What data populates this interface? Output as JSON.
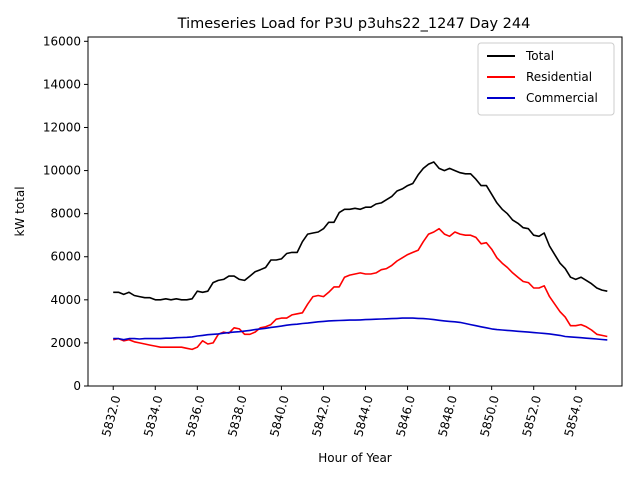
{
  "chart_data": {
    "type": "line",
    "title": "Timeseries Load for P3U p3uhs22_1247  Day 244",
    "xlabel": "Hour of Year",
    "ylabel": "kW total",
    "xlim": [
      5830.8,
      5856.2
    ],
    "ylim": [
      0,
      16200
    ],
    "xticks": [
      5832,
      5834,
      5836,
      5838,
      5840,
      5842,
      5844,
      5846,
      5848,
      5850,
      5852,
      5854
    ],
    "xtick_labels": [
      "5832.0",
      "5834.0",
      "5836.0",
      "5838.0",
      "5840.0",
      "5842.0",
      "5844.0",
      "5846.0",
      "5848.0",
      "5850.0",
      "5852.0",
      "5854.0"
    ],
    "yticks": [
      0,
      2000,
      4000,
      6000,
      8000,
      10000,
      12000,
      14000,
      16000
    ],
    "ytick_labels": [
      "0",
      "2000",
      "4000",
      "6000",
      "8000",
      "10000",
      "12000",
      "14000",
      "16000"
    ],
    "legend_position": "top-right",
    "x_start": 5832,
    "x_step": 0.25,
    "series": [
      {
        "name": "Total",
        "color": "#000000",
        "values": [
          4350,
          4350,
          4250,
          4350,
          4200,
          4150,
          4100,
          4100,
          4000,
          4000,
          4050,
          4000,
          4050,
          4000,
          4000,
          4050,
          4400,
          4350,
          4400,
          4800,
          4900,
          4950,
          5100,
          5100,
          4950,
          4900,
          5100,
          5300,
          5400,
          5500,
          5850,
          5850,
          5900,
          6150,
          6200,
          6200,
          6700,
          7050,
          7100,
          7150,
          7300,
          7600,
          7600,
          8050,
          8200,
          8200,
          8250,
          8200,
          8300,
          8300,
          8450,
          8500,
          8650,
          8800,
          9050,
          9150,
          9300,
          9400,
          9800,
          10100,
          10300,
          10400,
          10100,
          10000,
          10100,
          10000,
          9900,
          9850,
          9850,
          9600,
          9300,
          9300,
          8900,
          8500,
          8200,
          8000,
          7700,
          7550,
          7350,
          7300,
          7000,
          6950,
          7100,
          6500,
          6100,
          5700,
          5450,
          5050,
          4950,
          5050,
          4900,
          4750,
          4550,
          4450,
          4400
        ]
      },
      {
        "name": "Residential",
        "color": "#ff0000",
        "values": [
          2150,
          2200,
          2100,
          2150,
          2050,
          2000,
          1950,
          1900,
          1850,
          1800,
          1800,
          1800,
          1800,
          1800,
          1750,
          1700,
          1800,
          2100,
          1950,
          2000,
          2400,
          2500,
          2450,
          2700,
          2650,
          2400,
          2400,
          2500,
          2700,
          2750,
          2850,
          3100,
          3150,
          3150,
          3300,
          3350,
          3400,
          3800,
          4150,
          4200,
          4150,
          4350,
          4600,
          4600,
          5050,
          5150,
          5200,
          5250,
          5200,
          5200,
          5250,
          5400,
          5450,
          5600,
          5800,
          5950,
          6100,
          6200,
          6300,
          6700,
          7050,
          7150,
          7300,
          7050,
          6950,
          7150,
          7050,
          7000,
          7000,
          6900,
          6600,
          6650,
          6350,
          5950,
          5700,
          5500,
          5250,
          5050,
          4850,
          4800,
          4550,
          4550,
          4650,
          4150,
          3800,
          3450,
          3200,
          2800,
          2800,
          2850,
          2750,
          2600,
          2400,
          2350,
          2300
        ]
      },
      {
        "name": "Commercial",
        "color": "#0000cc",
        "values": [
          2200,
          2200,
          2150,
          2200,
          2200,
          2180,
          2200,
          2200,
          2200,
          2200,
          2220,
          2220,
          2240,
          2250,
          2260,
          2280,
          2320,
          2350,
          2380,
          2400,
          2420,
          2450,
          2480,
          2500,
          2520,
          2550,
          2580,
          2620,
          2650,
          2680,
          2720,
          2750,
          2780,
          2820,
          2850,
          2870,
          2900,
          2920,
          2950,
          2980,
          3000,
          3020,
          3030,
          3040,
          3050,
          3060,
          3060,
          3070,
          3080,
          3090,
          3100,
          3110,
          3120,
          3130,
          3140,
          3150,
          3150,
          3150,
          3140,
          3130,
          3110,
          3080,
          3050,
          3020,
          3000,
          2980,
          2950,
          2900,
          2850,
          2800,
          2750,
          2700,
          2650,
          2620,
          2600,
          2580,
          2560,
          2540,
          2520,
          2500,
          2480,
          2460,
          2440,
          2420,
          2380,
          2350,
          2300,
          2280,
          2260,
          2240,
          2220,
          2200,
          2180,
          2160,
          2140
        ]
      }
    ]
  }
}
